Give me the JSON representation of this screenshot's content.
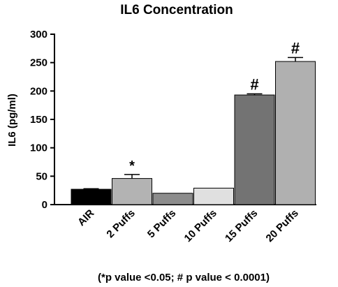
{
  "chart_data": {
    "type": "bar",
    "title": "IL6 Concentration",
    "xlabel": "",
    "ylabel": "IL6 (pg/ml)",
    "ylim": [
      0,
      300
    ],
    "yticks": [
      0,
      50,
      100,
      150,
      200,
      250,
      300
    ],
    "grid": false,
    "categories": [
      "AIR",
      "2 Puffs",
      "5 Puffs",
      "10 Puffs",
      "15 Puffs",
      "20 Puffs"
    ],
    "values": [
      27,
      46,
      20,
      29,
      193,
      252
    ],
    "errors": [
      1,
      7,
      0,
      0,
      2,
      7
    ],
    "colors": [
      "#000000",
      "#b3b3b3",
      "#8c8c8c",
      "#e0e0e0",
      "#737373",
      "#b0b0b0"
    ],
    "annotations": [
      "",
      "*",
      "",
      "",
      "#",
      "#"
    ],
    "footnote": "(*p value <0.05; # p value < 0.0001)"
  }
}
